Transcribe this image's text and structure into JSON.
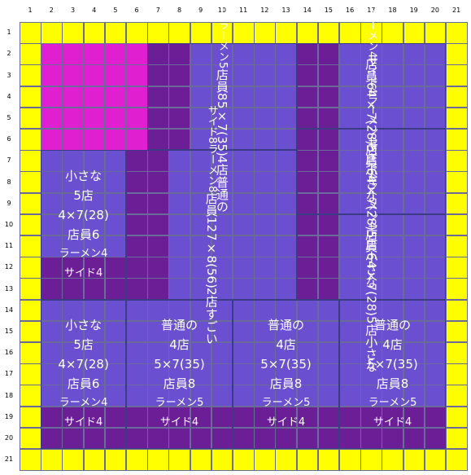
{
  "columns": [
    "1",
    "2",
    "3",
    "4",
    "5",
    "6",
    "7",
    "8",
    "9",
    "10",
    "11",
    "12",
    "13",
    "14",
    "15",
    "16",
    "17",
    "18",
    "19",
    "20",
    "21"
  ],
  "rows": [
    "1",
    "2",
    "3",
    "4",
    "5",
    "6",
    "7",
    "8",
    "9",
    "10",
    "11",
    "12",
    "13",
    "14",
    "15",
    "16",
    "17",
    "18",
    "19",
    "20",
    "21"
  ],
  "colors": {
    "border": "#ffff00",
    "magenta": "#e020d0",
    "light_purple": "#6a4fd0",
    "dark_purple": "#6c1e96",
    "mid_purple": "#7a3fc0"
  },
  "stores": [
    {
      "id": "magenta-area",
      "lines": []
    },
    {
      "id": "store-normal-top",
      "lines": [
        "普通の",
        "4店",
        "5×7(35)",
        "店員8",
        "ラーメン5",
        "サイド4"
      ]
    },
    {
      "id": "store-small-top-right-1",
      "lines": [
        "小さな",
        "5店",
        "4×7(28)",
        "店員6",
        "ラーメン4",
        "サイド4"
      ]
    },
    {
      "id": "store-small-top-right-2",
      "lines": [
        "小さな",
        "5店",
        "4×7(28)",
        "店員6",
        "ラーメン4",
        "サイド4"
      ]
    },
    {
      "id": "store-small-top-right-3",
      "lines": [
        "小さな",
        "5店",
        "4×7(28)",
        "店員6",
        "ラーメン4",
        "サイド4"
      ]
    },
    {
      "id": "store-small-left",
      "lines": [
        "小さな",
        "5店",
        "4×7(28)",
        "店員6",
        "ラーメン4",
        "サイド4"
      ]
    },
    {
      "id": "store-great",
      "lines": [
        "すごい",
        "2店",
        "7×8(56)",
        "店員12",
        "ラーメン8",
        "サイド8"
      ]
    },
    {
      "id": "store-small-bottom-left",
      "lines": [
        "小さな",
        "5店",
        "4×7(28)",
        "店員6",
        "ラーメン4",
        "サイド4"
      ]
    },
    {
      "id": "store-normal-bottom-1",
      "lines": [
        "普通の",
        "4店",
        "5×7(35)",
        "店員8",
        "ラーメン5",
        "サイド4"
      ]
    },
    {
      "id": "store-normal-bottom-2",
      "lines": [
        "普通の",
        "4店",
        "5×7(35)",
        "店員8",
        "ラーメン5",
        "サイド4"
      ]
    },
    {
      "id": "store-normal-bottom-3",
      "lines": [
        "普通の",
        "4店",
        "5×7(35)",
        "店員8",
        "ラーメン5",
        "サイド4"
      ]
    }
  ]
}
